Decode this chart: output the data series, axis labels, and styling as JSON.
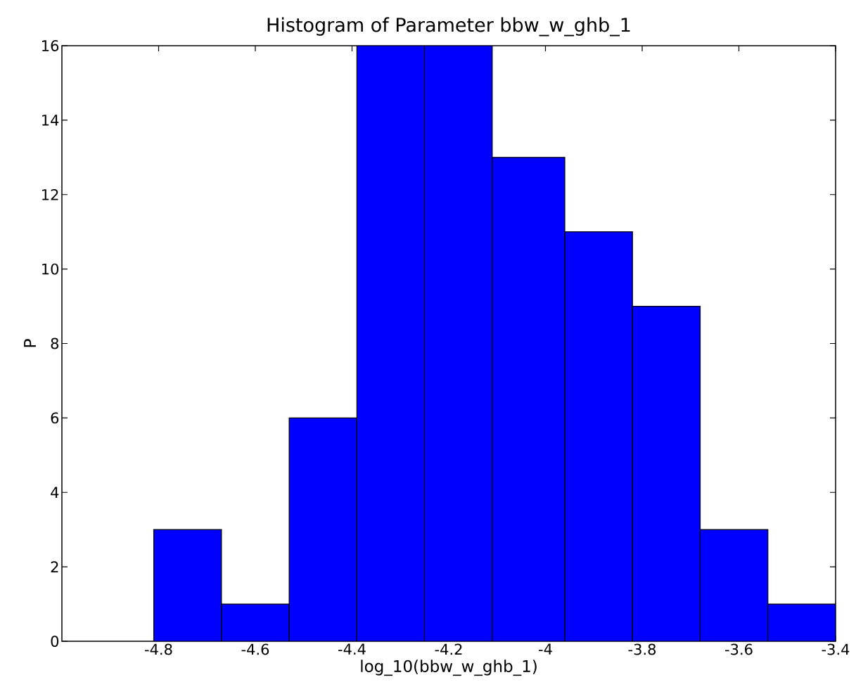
{
  "chart_data": {
    "type": "histogram",
    "title": "Histogram of Parameter bbw_w_ghb_1",
    "xlabel": "log_10(bbw_w_ghb_1)",
    "ylabel": "P",
    "bins": [
      -4.81,
      -4.67,
      -4.53,
      -4.39,
      -4.25,
      -4.11,
      -3.96,
      -3.82,
      -3.68,
      -3.54,
      -3.4
    ],
    "values": [
      3,
      1,
      6,
      16,
      16,
      13,
      11,
      9,
      3,
      1
    ],
    "color": "#0000ff",
    "xlim": [
      -5.0,
      -3.4
    ],
    "ylim": [
      0,
      16
    ],
    "xticks": [
      -4.8,
      -4.6,
      -4.4,
      -4.2,
      -4,
      -3.8,
      -3.6,
      -3.4
    ],
    "yticks": [
      0,
      2,
      4,
      6,
      8,
      10,
      12,
      14,
      16
    ],
    "grid": false
  }
}
